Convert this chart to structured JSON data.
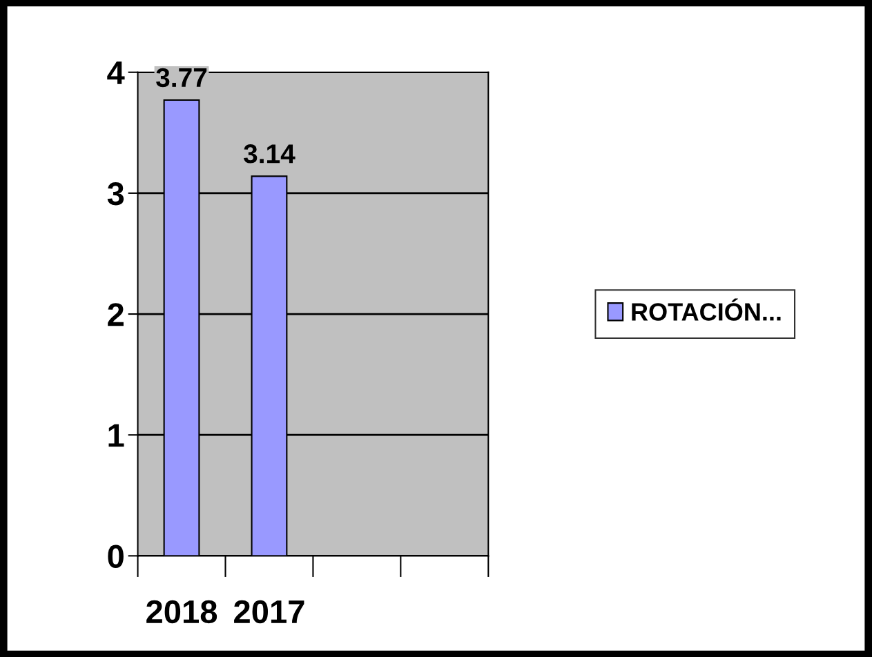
{
  "chart_data": {
    "type": "bar",
    "categories": [
      "2018",
      "2017",
      null,
      null
    ],
    "series": [
      {
        "name": "ROTACIÓN...",
        "color": "#9999ff",
        "values": [
          3.77,
          3.14,
          null,
          null
        ]
      }
    ],
    "ylim": [
      0,
      4
    ],
    "yticks": [
      0,
      1,
      2,
      3,
      4
    ],
    "grid": "y",
    "legend": "right",
    "data_labels": true
  }
}
